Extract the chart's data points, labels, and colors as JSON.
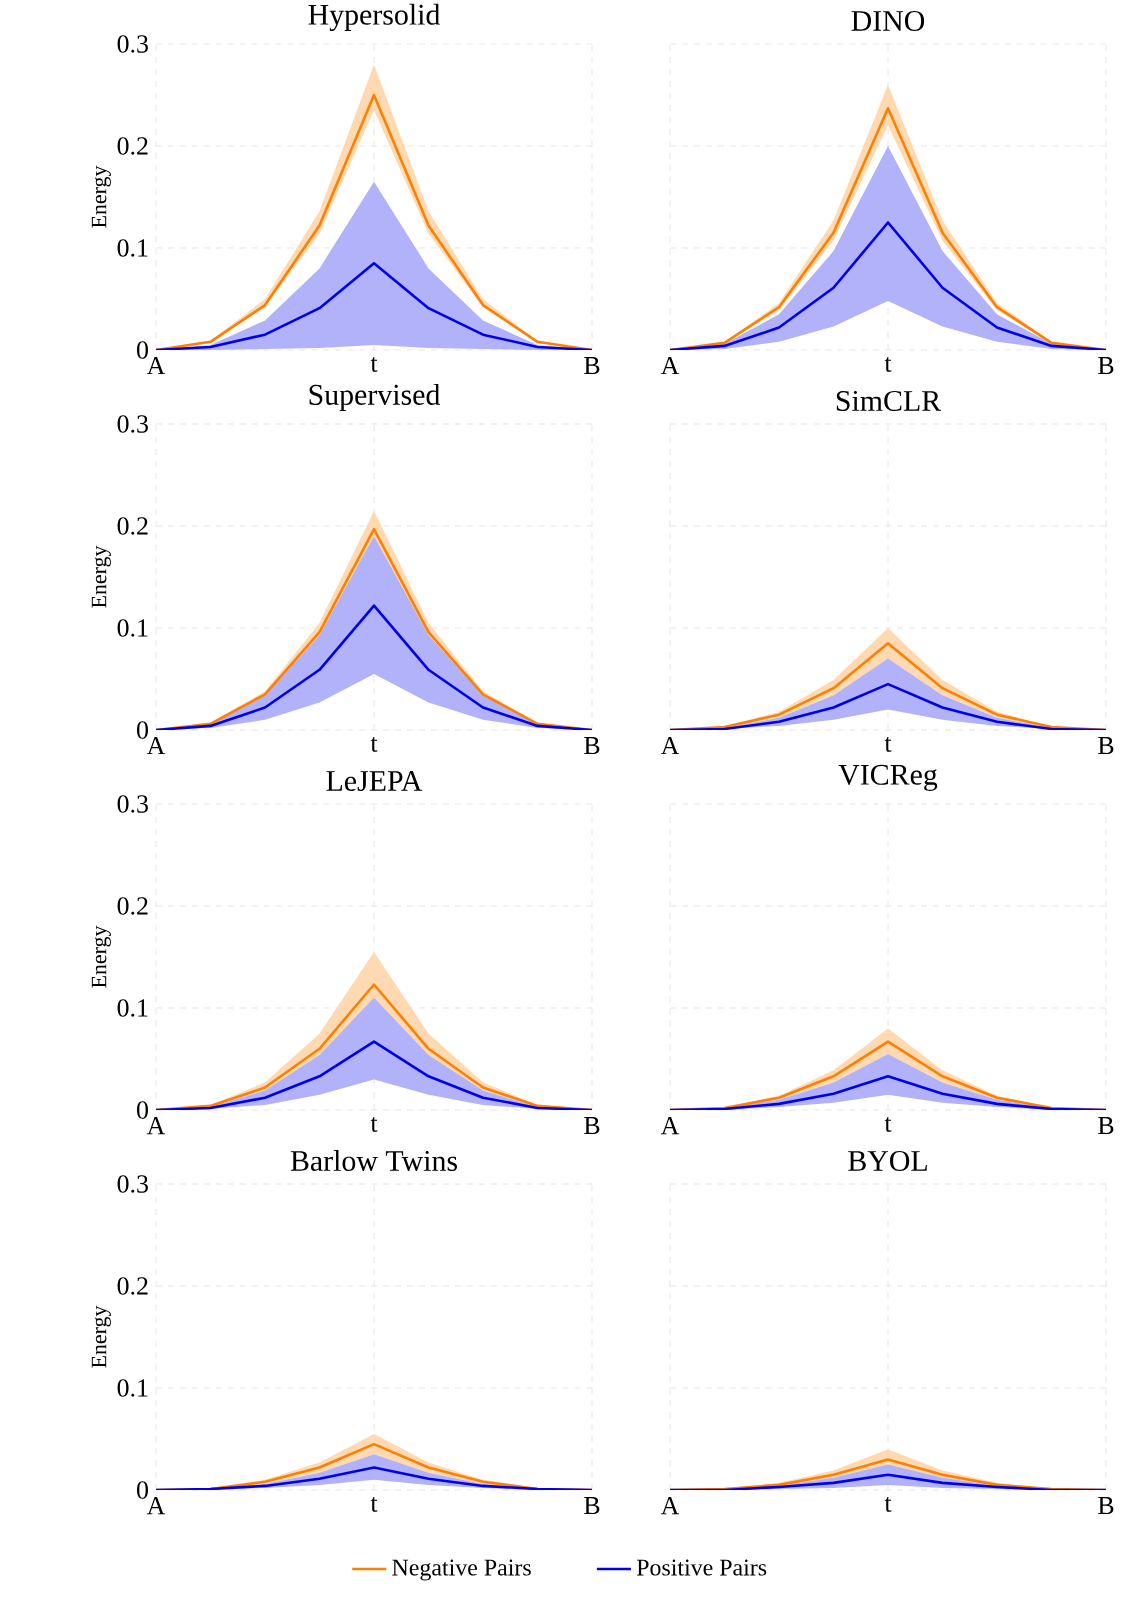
{
  "chart_data": [
    {
      "type": "line",
      "title": "Hypersolid",
      "ylabel": "Energy",
      "categories": [
        "A",
        null,
        null,
        null,
        "t",
        null,
        null,
        null,
        "B"
      ],
      "ylim": [
        0,
        0.3
      ],
      "yticks": [
        0,
        0.1,
        0.2,
        0.3
      ],
      "grid": true,
      "series": [
        {
          "color": "#ff8000",
          "values": [
            0,
            0.008,
            0.044,
            0.122,
            0.25,
            0.122,
            0.044,
            0.008,
            0
          ],
          "lower": [
            0,
            0.007,
            0.042,
            0.114,
            0.235,
            0.114,
            0.042,
            0.007,
            0
          ],
          "upper": [
            0,
            0.009,
            0.05,
            0.136,
            0.28,
            0.136,
            0.05,
            0.009,
            0
          ]
        },
        {
          "color": "#0000f0",
          "values": [
            0,
            0.003,
            0.015,
            0.041,
            0.085,
            0.041,
            0.015,
            0.003,
            0
          ],
          "lower": [
            0,
            0,
            0.001,
            0.002,
            0.005,
            0.002,
            0.001,
            0,
            0
          ],
          "upper": [
            0,
            0.005,
            0.029,
            0.08,
            0.165,
            0.08,
            0.029,
            0.005,
            0
          ]
        }
      ]
    },
    {
      "type": "line",
      "title": "DINO",
      "categories": [
        "A",
        null,
        null,
        null,
        "t",
        null,
        null,
        null,
        "B"
      ],
      "ylim": [
        0,
        0.3
      ],
      "yticks": [
        0,
        0.1,
        0.2,
        0.3
      ],
      "grid": true,
      "tick_labels": "x",
      "series": [
        {
          "color": "#ff8000",
          "values": [
            0,
            0.007,
            0.042,
            0.115,
            0.237,
            0.115,
            0.042,
            0.007,
            0
          ],
          "lower": [
            0,
            0.007,
            0.039,
            0.107,
            0.22,
            0.107,
            0.039,
            0.007,
            0
          ],
          "upper": [
            0,
            0.008,
            0.046,
            0.127,
            0.26,
            0.127,
            0.046,
            0.008,
            0
          ]
        },
        {
          "color": "#0000f0",
          "values": [
            0,
            0.004,
            0.022,
            0.061,
            0.125,
            0.061,
            0.022,
            0.004,
            0
          ],
          "lower": [
            0,
            0.001,
            0.008,
            0.023,
            0.048,
            0.023,
            0.008,
            0.001,
            0
          ],
          "upper": [
            0,
            0.006,
            0.035,
            0.097,
            0.2,
            0.097,
            0.035,
            0.006,
            0
          ]
        }
      ]
    },
    {
      "type": "line",
      "title": "Supervised",
      "ylabel": "Energy",
      "categories": [
        "A",
        null,
        null,
        null,
        "t",
        null,
        null,
        null,
        "B"
      ],
      "ylim": [
        0,
        0.3
      ],
      "yticks": [
        0,
        0.1,
        0.2,
        0.3
      ],
      "grid": true,
      "series": [
        {
          "color": "#ff8000",
          "values": [
            0,
            0.006,
            0.035,
            0.096,
            0.197,
            0.096,
            0.035,
            0.006,
            0
          ],
          "lower": [
            0,
            0.006,
            0.032,
            0.088,
            0.18,
            0.088,
            0.032,
            0.006,
            0
          ],
          "upper": [
            0,
            0.007,
            0.038,
            0.105,
            0.215,
            0.105,
            0.038,
            0.007,
            0
          ]
        },
        {
          "color": "#0000f0",
          "values": [
            0,
            0.004,
            0.022,
            0.059,
            0.122,
            0.059,
            0.022,
            0.004,
            0
          ],
          "lower": [
            0,
            0.002,
            0.01,
            0.027,
            0.055,
            0.027,
            0.01,
            0.002,
            0
          ],
          "upper": [
            0,
            0.006,
            0.034,
            0.093,
            0.19,
            0.093,
            0.034,
            0.006,
            0
          ]
        }
      ]
    },
    {
      "type": "line",
      "title": "SimCLR",
      "categories": [
        "A",
        null,
        null,
        null,
        "t",
        null,
        null,
        null,
        "B"
      ],
      "ylim": [
        0,
        0.3
      ],
      "yticks": [
        0,
        0.1,
        0.2,
        0.3
      ],
      "grid": true,
      "tick_labels": "x",
      "series": [
        {
          "color": "#ff8000",
          "values": [
            0,
            0.003,
            0.015,
            0.041,
            0.085,
            0.041,
            0.015,
            0.003,
            0
          ],
          "lower": [
            0,
            0.002,
            0.012,
            0.034,
            0.07,
            0.034,
            0.012,
            0.002,
            0
          ],
          "upper": [
            0,
            0.003,
            0.018,
            0.049,
            0.1,
            0.049,
            0.018,
            0.003,
            0
          ]
        },
        {
          "color": "#0000f0",
          "values": [
            0,
            0.001,
            0.008,
            0.022,
            0.045,
            0.022,
            0.008,
            0.001,
            0
          ],
          "lower": [
            0,
            0.001,
            0.004,
            0.01,
            0.02,
            0.01,
            0.004,
            0.001,
            0
          ],
          "upper": [
            0,
            0.002,
            0.012,
            0.034,
            0.07,
            0.034,
            0.012,
            0.002,
            0
          ]
        }
      ]
    },
    {
      "type": "line",
      "title": "LeJEPA",
      "ylabel": "Energy",
      "categories": [
        "A",
        null,
        null,
        null,
        "t",
        null,
        null,
        null,
        "B"
      ],
      "ylim": [
        0,
        0.3
      ],
      "yticks": [
        0,
        0.1,
        0.2,
        0.3
      ],
      "grid": true,
      "series": [
        {
          "color": "#ff8000",
          "values": [
            0,
            0.004,
            0.022,
            0.06,
            0.123,
            0.06,
            0.022,
            0.004,
            0
          ],
          "lower": [
            0,
            0.003,
            0.019,
            0.051,
            0.105,
            0.051,
            0.019,
            0.003,
            0
          ],
          "upper": [
            0,
            0.005,
            0.027,
            0.075,
            0.155,
            0.075,
            0.027,
            0.005,
            0
          ]
        },
        {
          "color": "#0000f0",
          "values": [
            0,
            0.002,
            0.012,
            0.033,
            0.067,
            0.033,
            0.012,
            0.002,
            0
          ],
          "lower": [
            0,
            0.001,
            0.005,
            0.015,
            0.03,
            0.015,
            0.005,
            0.001,
            0
          ],
          "upper": [
            0,
            0.003,
            0.019,
            0.054,
            0.11,
            0.054,
            0.019,
            0.003,
            0
          ]
        }
      ]
    },
    {
      "type": "line",
      "title": "VICReg",
      "categories": [
        "A",
        null,
        null,
        null,
        "t",
        null,
        null,
        null,
        "B"
      ],
      "ylim": [
        0,
        0.3
      ],
      "yticks": [
        0,
        0.1,
        0.2,
        0.3
      ],
      "grid": true,
      "tick_labels": "x",
      "series": [
        {
          "color": "#ff8000",
          "values": [
            0,
            0.002,
            0.012,
            0.033,
            0.067,
            0.033,
            0.012,
            0.002,
            0
          ],
          "lower": [
            0,
            0.002,
            0.01,
            0.027,
            0.055,
            0.027,
            0.01,
            0.002,
            0
          ],
          "upper": [
            0,
            0.002,
            0.014,
            0.039,
            0.08,
            0.039,
            0.014,
            0.002,
            0
          ]
        },
        {
          "color": "#0000f0",
          "values": [
            0,
            0.001,
            0.006,
            0.016,
            0.033,
            0.016,
            0.006,
            0.001,
            0
          ],
          "lower": [
            0,
            0,
            0.003,
            0.007,
            0.015,
            0.007,
            0.003,
            0,
            0
          ],
          "upper": [
            0,
            0.002,
            0.01,
            0.027,
            0.055,
            0.027,
            0.01,
            0.002,
            0
          ]
        }
      ]
    },
    {
      "type": "line",
      "title": "Barlow Twins",
      "ylabel": "Energy",
      "categories": [
        "A",
        null,
        null,
        null,
        "t",
        null,
        null,
        null,
        "B"
      ],
      "ylim": [
        0,
        0.3
      ],
      "yticks": [
        0,
        0.1,
        0.2,
        0.3
      ],
      "grid": true,
      "series": [
        {
          "color": "#ff8000",
          "values": [
            0,
            0.001,
            0.008,
            0.022,
            0.045,
            0.022,
            0.008,
            0.001,
            0
          ],
          "lower": [
            0,
            0.001,
            0.006,
            0.017,
            0.035,
            0.017,
            0.006,
            0.001,
            0
          ],
          "upper": [
            0,
            0.002,
            0.01,
            0.027,
            0.055,
            0.027,
            0.01,
            0.002,
            0
          ]
        },
        {
          "color": "#0000f0",
          "values": [
            0,
            0.001,
            0.004,
            0.011,
            0.022,
            0.011,
            0.004,
            0.001,
            0
          ],
          "lower": [
            0,
            0,
            0.002,
            0.005,
            0.01,
            0.005,
            0.002,
            0,
            0
          ],
          "upper": [
            0,
            0.001,
            0.006,
            0.017,
            0.035,
            0.017,
            0.006,
            0.001,
            0
          ]
        }
      ]
    },
    {
      "type": "line",
      "title": "BYOL",
      "categories": [
        "A",
        null,
        null,
        null,
        "t",
        null,
        null,
        null,
        "B"
      ],
      "ylim": [
        0,
        0.3
      ],
      "yticks": [
        0,
        0.1,
        0.2,
        0.3
      ],
      "grid": true,
      "tick_labels": "x",
      "legend": "bottom",
      "series": [
        {
          "name": "Negative Pairs",
          "color": "#ff8000",
          "values": [
            0,
            0.001,
            0.005,
            0.015,
            0.03,
            0.015,
            0.005,
            0.001,
            0
          ],
          "lower": [
            0,
            0.001,
            0.004,
            0.01,
            0.02,
            0.01,
            0.004,
            0.001,
            0
          ],
          "upper": [
            0,
            0.001,
            0.007,
            0.019,
            0.04,
            0.019,
            0.007,
            0.001,
            0
          ]
        },
        {
          "name": "Positive Pairs",
          "color": "#0000f0",
          "values": [
            0,
            0,
            0.003,
            0.007,
            0.015,
            0.007,
            0.003,
            0,
            0
          ],
          "lower": [
            0,
            0,
            0.001,
            0.002,
            0.005,
            0.002,
            0.001,
            0,
            0
          ],
          "upper": [
            0,
            0.001,
            0.004,
            0.012,
            0.025,
            0.012,
            0.004,
            0.001,
            0
          ]
        }
      ]
    }
  ]
}
